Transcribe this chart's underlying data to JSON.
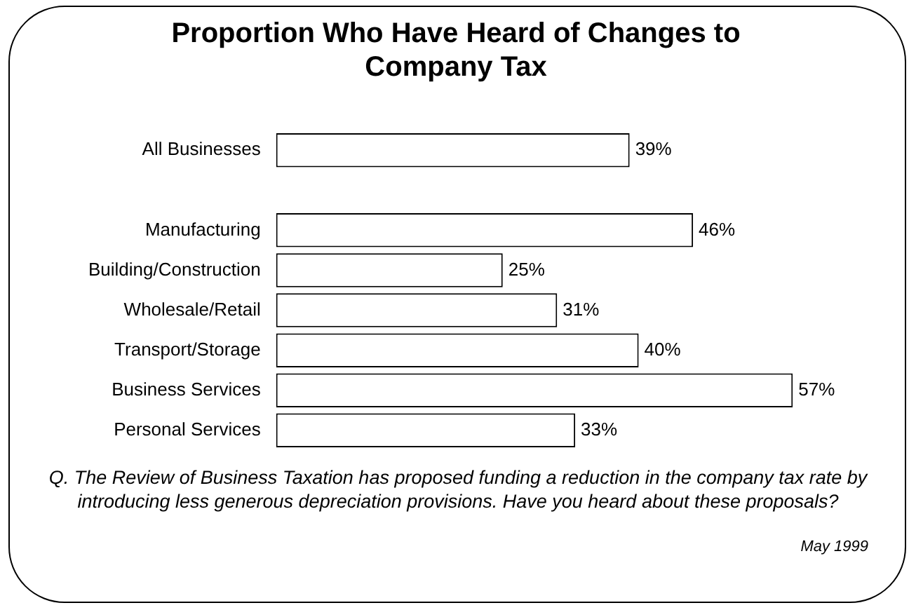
{
  "chart_data": {
    "type": "bar",
    "orientation": "horizontal",
    "title": "Proportion Who Have Heard of Changes to Company Tax",
    "categories": [
      "All Businesses",
      null,
      "Manufacturing",
      "Building/Construction",
      "Wholesale/Retail",
      "Transport/Storage",
      "Business Services",
      "Personal Services"
    ],
    "values": [
      39,
      null,
      46,
      25,
      31,
      40,
      57,
      33
    ],
    "value_labels": [
      "39%",
      null,
      "46%",
      "25%",
      "31%",
      "40%",
      "57%",
      "33%"
    ],
    "color": "#ffffff",
    "legend": false,
    "tick_labels": "y",
    "annotations": [
      "Q. The Review of Business Taxation has proposed funding a reduction in the company tax rate by introducing less generous depreciation provisions. Have you heard about these proposals?",
      "May 1999"
    ]
  }
}
